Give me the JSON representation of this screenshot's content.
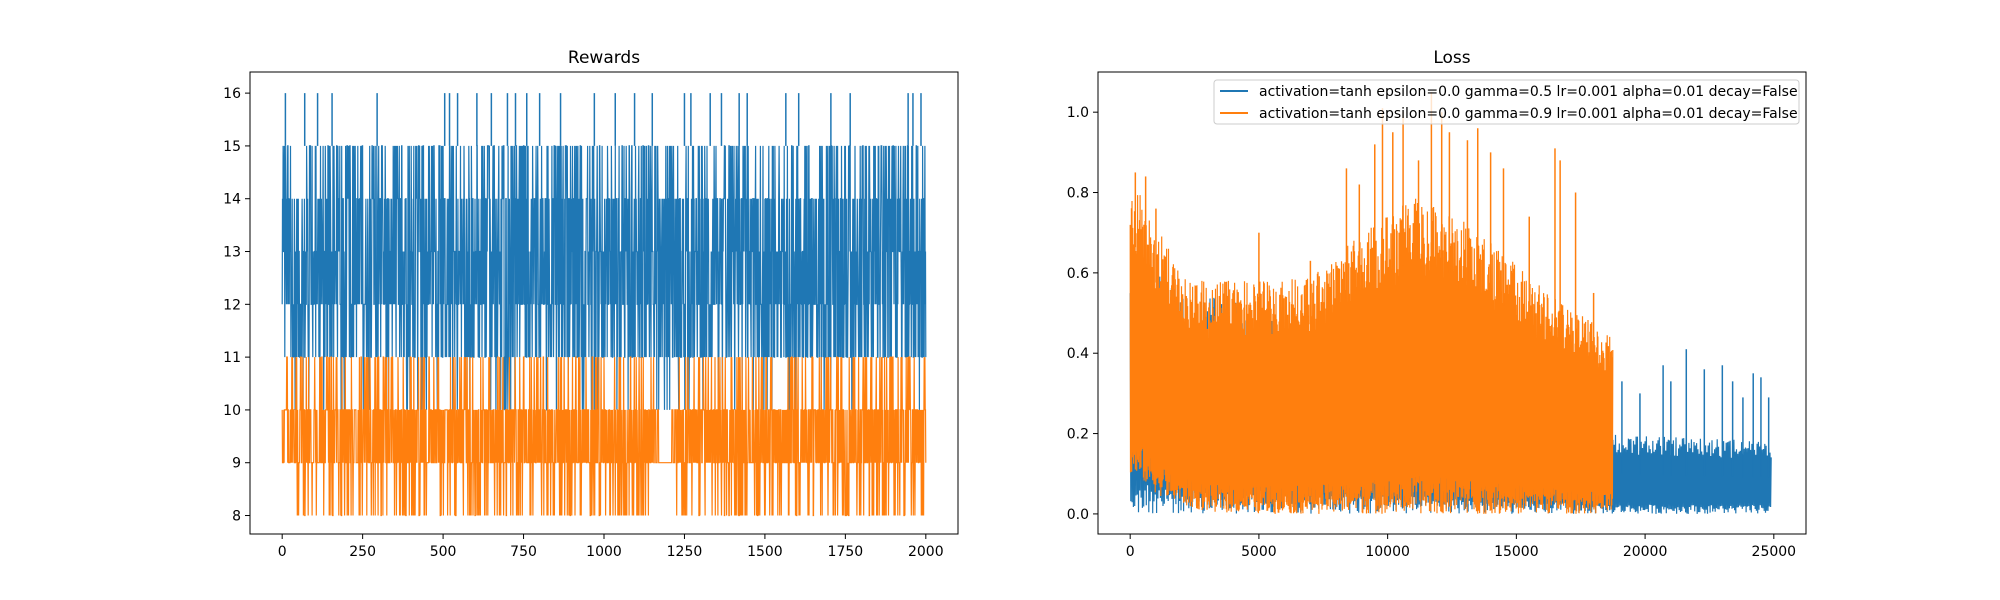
{
  "colors": {
    "series_blue": "#1f77b4",
    "series_orange": "#ff7f0e",
    "axis": "#000000",
    "background": "#ffffff",
    "legend_border": "#cccccc"
  },
  "chart_data": [
    {
      "type": "line",
      "title": "Rewards",
      "xlabel": "",
      "ylabel": "",
      "xlim": [
        -100,
        2100
      ],
      "ylim": [
        7.65,
        16.4
      ],
      "grid": false,
      "legend": false,
      "x_ticks": [
        0,
        250,
        500,
        750,
        1000,
        1250,
        1500,
        1750,
        2000
      ],
      "y_ticks": [
        8,
        9,
        10,
        11,
        12,
        13,
        14,
        15,
        16
      ],
      "series": [
        {
          "color": "#1f77b4",
          "x_range": [
            0,
            2000
          ],
          "band_low": 11,
          "band_high": 15,
          "dense_low": 11,
          "dense_high": 14,
          "spike_points": [
            {
              "x": 10,
              "y": 16
            },
            {
              "x": 70,
              "y": 16
            },
            {
              "x": 110,
              "y": 16
            },
            {
              "x": 155,
              "y": 16
            },
            {
              "x": 295,
              "y": 16
            },
            {
              "x": 505,
              "y": 16
            },
            {
              "x": 520,
              "y": 16
            },
            {
              "x": 545,
              "y": 16
            },
            {
              "x": 605,
              "y": 16
            },
            {
              "x": 650,
              "y": 16
            },
            {
              "x": 700,
              "y": 16
            },
            {
              "x": 725,
              "y": 16
            },
            {
              "x": 760,
              "y": 16
            },
            {
              "x": 800,
              "y": 16
            },
            {
              "x": 865,
              "y": 16
            },
            {
              "x": 970,
              "y": 16
            },
            {
              "x": 1035,
              "y": 16
            },
            {
              "x": 1095,
              "y": 16
            },
            {
              "x": 1150,
              "y": 16
            },
            {
              "x": 1250,
              "y": 16
            },
            {
              "x": 1270,
              "y": 16
            },
            {
              "x": 1330,
              "y": 16
            },
            {
              "x": 1365,
              "y": 16
            },
            {
              "x": 1420,
              "y": 16
            },
            {
              "x": 1445,
              "y": 16
            },
            {
              "x": 1565,
              "y": 16
            },
            {
              "x": 1605,
              "y": 16
            },
            {
              "x": 1705,
              "y": 16
            },
            {
              "x": 1765,
              "y": 16
            },
            {
              "x": 1945,
              "y": 16
            },
            {
              "x": 1960,
              "y": 16
            },
            {
              "x": 1985,
              "y": 16
            }
          ]
        },
        {
          "color": "#ff7f0e",
          "x_range": [
            0,
            2000
          ],
          "band_low": 9,
          "band_high": 10,
          "min_value": 8,
          "max_value": 11,
          "gap": [
            1155,
            1225
          ]
        }
      ]
    },
    {
      "type": "line",
      "title": "Loss",
      "xlabel": "",
      "ylabel": "",
      "xlim": [
        -1250,
        26250
      ],
      "ylim": [
        -0.05,
        1.1
      ],
      "grid": false,
      "legend": true,
      "legend_location": "upper right",
      "x_ticks": [
        0,
        5000,
        10000,
        15000,
        20000,
        25000
      ],
      "y_ticks": [
        0.0,
        0.2,
        0.4,
        0.6,
        0.8,
        1.0
      ],
      "series": [
        {
          "name": "activation=tanh epsilon=0.0 gamma=0.5 lr=0.001 alpha=0.01 decay=False",
          "color": "#1f77b4",
          "x_range": [
            0,
            24900
          ],
          "envelope": [
            {
              "x": 0,
              "high": 0.62,
              "low": 0.0
            },
            {
              "x": 18700,
              "high": 0.2,
              "low": 0.0
            },
            {
              "x": 24900,
              "high": 0.18,
              "low": 0.0
            }
          ],
          "spike_points": [
            {
              "x": 19100,
              "y": 0.33
            },
            {
              "x": 19800,
              "y": 0.3
            },
            {
              "x": 20700,
              "y": 0.37
            },
            {
              "x": 21000,
              "y": 0.33
            },
            {
              "x": 21600,
              "y": 0.41
            },
            {
              "x": 22300,
              "y": 0.36
            },
            {
              "x": 23000,
              "y": 0.37
            },
            {
              "x": 23400,
              "y": 0.33
            },
            {
              "x": 23800,
              "y": 0.29
            },
            {
              "x": 24200,
              "y": 0.35
            },
            {
              "x": 24500,
              "y": 0.34
            },
            {
              "x": 24800,
              "y": 0.29
            }
          ]
        },
        {
          "name": "activation=tanh epsilon=0.0 gamma=0.9 lr=0.001 alpha=0.01 decay=False",
          "color": "#ff7f0e",
          "x_range": [
            0,
            18750
          ],
          "envelope": [
            {
              "x": 0,
              "high": 0.85,
              "low": 0.1
            },
            {
              "x": 500,
              "high": 0.8,
              "low": 0.08
            },
            {
              "x": 1000,
              "high": 0.72,
              "low": 0.05
            },
            {
              "x": 2000,
              "high": 0.6,
              "low": 0.02
            },
            {
              "x": 3000,
              "high": 0.58,
              "low": 0.005
            },
            {
              "x": 5000,
              "high": 0.58,
              "low": 0.0
            },
            {
              "x": 7000,
              "high": 0.59,
              "low": 0.0
            },
            {
              "x": 9000,
              "high": 0.7,
              "low": 0.0
            },
            {
              "x": 11000,
              "high": 0.79,
              "low": 0.0
            },
            {
              "x": 13000,
              "high": 0.73,
              "low": 0.0
            },
            {
              "x": 15000,
              "high": 0.62,
              "low": 0.0
            },
            {
              "x": 17000,
              "high": 0.52,
              "low": 0.0
            },
            {
              "x": 18750,
              "high": 0.44,
              "low": 0.0
            }
          ],
          "spike_points": [
            {
              "x": 200,
              "y": 0.85
            },
            {
              "x": 600,
              "y": 0.84
            },
            {
              "x": 1000,
              "y": 0.76
            },
            {
              "x": 5000,
              "y": 0.7
            },
            {
              "x": 7000,
              "y": 0.63
            },
            {
              "x": 8400,
              "y": 0.86
            },
            {
              "x": 8900,
              "y": 0.82
            },
            {
              "x": 9500,
              "y": 0.92
            },
            {
              "x": 9800,
              "y": 1.01
            },
            {
              "x": 10200,
              "y": 0.95
            },
            {
              "x": 10600,
              "y": 1.0
            },
            {
              "x": 11200,
              "y": 0.88
            },
            {
              "x": 11700,
              "y": 1.05
            },
            {
              "x": 12100,
              "y": 1.0
            },
            {
              "x": 12400,
              "y": 0.95
            },
            {
              "x": 13100,
              "y": 0.93
            },
            {
              "x": 13500,
              "y": 0.96
            },
            {
              "x": 14000,
              "y": 0.9
            },
            {
              "x": 14500,
              "y": 0.86
            },
            {
              "x": 15500,
              "y": 0.74
            },
            {
              "x": 16500,
              "y": 0.91
            },
            {
              "x": 16700,
              "y": 0.88
            },
            {
              "x": 17300,
              "y": 0.8
            },
            {
              "x": 18000,
              "y": 0.55
            }
          ]
        }
      ]
    }
  ]
}
